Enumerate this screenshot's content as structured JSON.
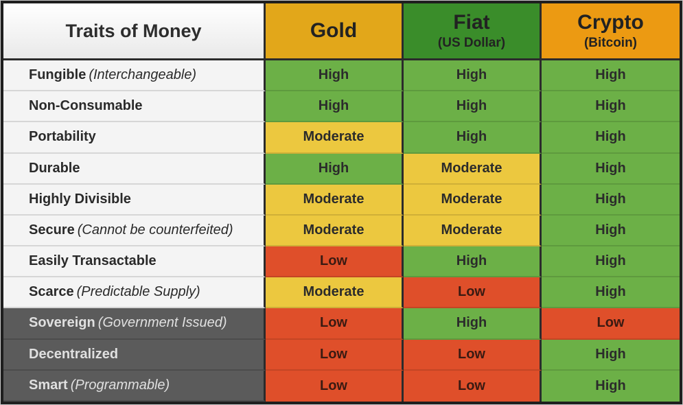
{
  "header": {
    "trait": "Traits of Money",
    "gold": {
      "title": "Gold",
      "subtitle": ""
    },
    "fiat": {
      "title": "Fiat",
      "subtitle": "(US Dollar)"
    },
    "crypto": {
      "title": "Crypto",
      "subtitle": "(Bitcoin)"
    }
  },
  "rows": [
    {
      "trait": "Fungible",
      "note": "(Interchangeable)",
      "gold": "High",
      "fiat": "High",
      "crypto": "High",
      "dark": false
    },
    {
      "trait": "Non-Consumable",
      "note": "",
      "gold": "High",
      "fiat": "High",
      "crypto": "High",
      "dark": false
    },
    {
      "trait": "Portability",
      "note": "",
      "gold": "Moderate",
      "fiat": "High",
      "crypto": "High",
      "dark": false
    },
    {
      "trait": "Durable",
      "note": "",
      "gold": "High",
      "fiat": "Moderate",
      "crypto": "High",
      "dark": false
    },
    {
      "trait": "Highly Divisible",
      "note": "",
      "gold": "Moderate",
      "fiat": "Moderate",
      "crypto": "High",
      "dark": false
    },
    {
      "trait": "Secure",
      "note": "(Cannot be counterfeited)",
      "gold": "Moderate",
      "fiat": "Moderate",
      "crypto": "High",
      "dark": false
    },
    {
      "trait": "Easily Transactable",
      "note": "",
      "gold": "Low",
      "fiat": "High",
      "crypto": "High",
      "dark": false
    },
    {
      "trait": "Scarce",
      "note": "(Predictable Supply)",
      "gold": "Moderate",
      "fiat": "Low",
      "crypto": "High",
      "dark": false
    },
    {
      "trait": "Sovereign",
      "note": "(Government Issued)",
      "gold": "Low",
      "fiat": "High",
      "crypto": "Low",
      "dark": true
    },
    {
      "trait": "Decentralized",
      "note": "",
      "gold": "Low",
      "fiat": "Low",
      "crypto": "High",
      "dark": true
    },
    {
      "trait": "Smart",
      "note": "(Programmable)",
      "gold": "Low",
      "fiat": "Low",
      "crypto": "High",
      "dark": true
    }
  ],
  "colors": {
    "high": "#6cb047",
    "moderate": "#ecc83f",
    "low": "#df4f2a",
    "gold_header": "#e2a71a",
    "fiat_header": "#3a8d2a",
    "crypto_header": "#ec9a12"
  }
}
